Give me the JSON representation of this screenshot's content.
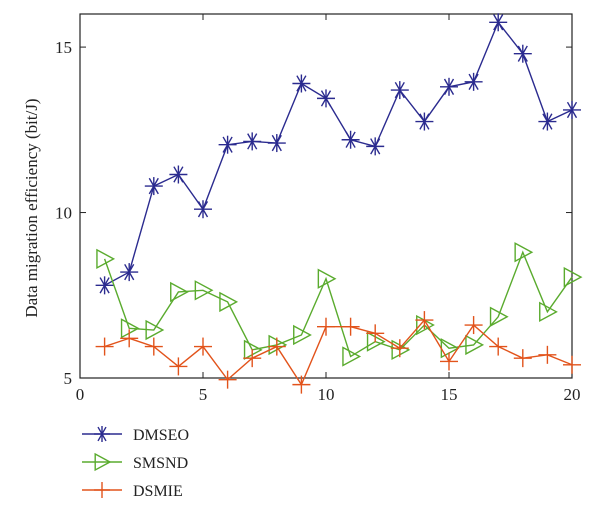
{
  "chart_data": {
    "type": "line",
    "title": "",
    "xlabel": "",
    "ylabel": "Data migration efficiency (bit/J)",
    "xlim": [
      0,
      20
    ],
    "ylim": [
      5,
      16
    ],
    "xticks": [
      0,
      5,
      10,
      15,
      20
    ],
    "yticks": [
      5,
      10,
      15
    ],
    "grid": false,
    "legend_position": "bottom-left, below plot",
    "x": [
      1,
      2,
      3,
      4,
      5,
      6,
      7,
      8,
      9,
      10,
      11,
      12,
      13,
      14,
      15,
      16,
      17,
      18,
      19,
      20
    ],
    "series": [
      {
        "name": "DMSEO",
        "color": "#2b2b8f",
        "marker": "asterisk",
        "values": [
          7.8,
          8.2,
          10.8,
          11.15,
          10.1,
          12.05,
          12.15,
          12.1,
          13.9,
          13.45,
          12.2,
          12.0,
          13.7,
          12.75,
          13.8,
          13.95,
          15.75,
          14.8,
          12.75,
          13.1
        ]
      },
      {
        "name": "SMSND",
        "color": "#5aab2e",
        "marker": "triangle-right",
        "values": [
          8.6,
          6.5,
          6.45,
          7.6,
          7.65,
          7.3,
          5.85,
          6.0,
          6.3,
          8.0,
          5.65,
          6.1,
          5.85,
          6.6,
          5.9,
          6.0,
          6.85,
          8.8,
          7.0,
          8.05
        ]
      },
      {
        "name": "DSMIE",
        "color": "#e2531b",
        "marker": "plus",
        "values": [
          5.95,
          6.2,
          5.95,
          5.35,
          5.95,
          4.95,
          5.6,
          5.95,
          4.8,
          6.55,
          6.55,
          6.35,
          5.9,
          6.75,
          5.5,
          6.6,
          5.95,
          5.6,
          5.7,
          5.4
        ]
      }
    ]
  }
}
